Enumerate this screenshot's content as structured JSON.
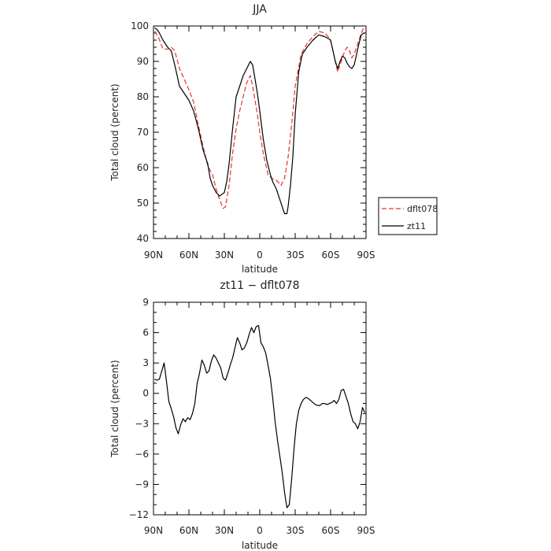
{
  "chart_data": [
    {
      "type": "line",
      "title": "JJA",
      "xlabel": "latitude",
      "ylabel": "Total cloud (percent)",
      "xlim": [
        90,
        -90
      ],
      "ylim": [
        40,
        100
      ],
      "x_ticks": [
        90,
        60,
        30,
        0,
        -30,
        -60,
        -90
      ],
      "x_tick_labels": [
        "90N",
        "60N",
        "30N",
        "0",
        "30S",
        "60S",
        "90S"
      ],
      "y_ticks": [
        40,
        50,
        60,
        70,
        80,
        90,
        100
      ],
      "y_tick_labels": [
        "40",
        "50",
        "60",
        "70",
        "80",
        "90",
        "100"
      ],
      "grid": false,
      "legend": {
        "placement": "right-outside",
        "entries": [
          "dflt078",
          "zt11"
        ]
      },
      "series": [
        {
          "name": "dflt078",
          "color": "#e8302a",
          "dash": "dashed",
          "x": [
            89,
            86,
            82,
            78,
            75,
            72,
            68,
            64,
            60,
            56,
            52,
            48,
            44,
            40,
            37,
            34,
            31,
            29,
            26,
            23,
            20,
            17,
            14,
            11,
            8,
            6,
            4,
            2,
            0,
            -3,
            -7,
            -10,
            -14,
            -18,
            -21,
            -24,
            -27,
            -30,
            -35,
            -40,
            -45,
            -50,
            -55,
            -58,
            -60,
            -64,
            -66,
            -68,
            -70,
            -72,
            -74,
            -76,
            -78,
            -80,
            -82,
            -84,
            -86,
            -88,
            -89
          ],
          "y": [
            98.5,
            97,
            93.5,
            93.5,
            94,
            93,
            88,
            85,
            82,
            78.5,
            72,
            66,
            60.5,
            58,
            54,
            51,
            48.5,
            49,
            55,
            64,
            71,
            76,
            80,
            84,
            86,
            83,
            79,
            75,
            70,
            64,
            58,
            57,
            56.5,
            55,
            57,
            63,
            72,
            83,
            92,
            95,
            97,
            98.5,
            98,
            97,
            96,
            90,
            87,
            89,
            91,
            93,
            94,
            93,
            91,
            92,
            94,
            96,
            98,
            99.5,
            100
          ]
        },
        {
          "name": "zt11",
          "color": "#000000",
          "dash": "solid",
          "x": [
            89,
            87,
            85,
            82,
            78,
            75,
            72,
            68,
            64,
            60,
            56,
            52,
            48,
            44,
            42,
            40,
            37,
            34,
            32,
            30,
            28,
            26,
            23,
            20,
            17,
            14,
            11,
            8,
            6,
            4,
            2,
            0,
            -3,
            -6,
            -9,
            -11,
            -14,
            -17,
            -19,
            -21,
            -23,
            -24,
            -26,
            -28,
            -30,
            -33,
            -36,
            -40,
            -45,
            -50,
            -55,
            -58,
            -60,
            -62,
            -64,
            -66,
            -68,
            -70,
            -72,
            -74,
            -76,
            -78,
            -80,
            -82,
            -84,
            -86,
            -88,
            -89
          ],
          "y": [
            99.5,
            99,
            98,
            96,
            94,
            93,
            89,
            83,
            81,
            79,
            76,
            71,
            65,
            61,
            57,
            55,
            53,
            52,
            52.5,
            53,
            56,
            61,
            71,
            80,
            83,
            86,
            88,
            90,
            89,
            85,
            81,
            76,
            68,
            62,
            58,
            56,
            54,
            51,
            49,
            47,
            47,
            49,
            55,
            63,
            75,
            87,
            92,
            94,
            96,
            97.5,
            97,
            96.5,
            96,
            93,
            90,
            88,
            90,
            91.5,
            91,
            89.5,
            88.5,
            88,
            89,
            92,
            95,
            97.5,
            98,
            98
          ]
        }
      ]
    },
    {
      "type": "line",
      "title": "zt11 − dflt078",
      "xlabel": "latitude",
      "ylabel": "Total cloud (percent)",
      "xlim": [
        90,
        -90
      ],
      "ylim": [
        -12,
        9
      ],
      "x_ticks": [
        90,
        60,
        30,
        0,
        -30,
        -60,
        -90
      ],
      "x_tick_labels": [
        "90N",
        "60N",
        "30N",
        "0",
        "30S",
        "60S",
        "90S"
      ],
      "y_ticks": [
        -12,
        -9,
        -6,
        -3,
        0,
        3,
        6,
        9
      ],
      "y_tick_labels": [
        "−12",
        "−9",
        "−6",
        "−3",
        "0",
        "3",
        "6",
        "9"
      ],
      "grid": false,
      "series": [
        {
          "color": "#000000",
          "dash": "solid",
          "x": [
            89,
            87,
            85,
            83,
            81,
            79,
            77,
            75,
            73,
            71,
            69,
            67,
            65,
            63,
            61,
            59,
            57,
            55,
            53,
            51,
            49,
            47,
            45,
            43,
            41,
            39,
            37,
            35,
            33,
            31,
            29,
            27,
            25,
            23,
            21,
            19,
            17,
            15,
            13,
            11,
            9,
            7,
            5,
            3,
            1,
            -1,
            -3,
            -5,
            -7,
            -9,
            -11,
            -13,
            -15,
            -17,
            -19,
            -21,
            -23,
            -25,
            -27,
            -29,
            -31,
            -33,
            -35,
            -37,
            -39,
            -41,
            -43,
            -45,
            -47,
            -49,
            -51,
            -53,
            -55,
            -57,
            -59,
            -61,
            -63,
            -65,
            -67,
            -69,
            -71,
            -73,
            -75,
            -77,
            -79,
            -81,
            -83,
            -85,
            -87,
            -89
          ],
          "y": [
            1.4,
            1.3,
            1.4,
            2.2,
            3.0,
            1.2,
            -0.8,
            -1.5,
            -2.3,
            -3.4,
            -4.0,
            -3.1,
            -2.5,
            -2.8,
            -2.4,
            -2.6,
            -2.0,
            -1.0,
            1.0,
            2.0,
            3.3,
            2.8,
            2.0,
            2.2,
            3.2,
            3.8,
            3.5,
            3.0,
            2.5,
            1.5,
            1.3,
            2.0,
            2.8,
            3.5,
            4.5,
            5.5,
            5.0,
            4.3,
            4.5,
            5.0,
            5.8,
            6.5,
            6.0,
            6.6,
            6.7,
            5.0,
            4.6,
            4.0,
            2.8,
            1.5,
            -0.5,
            -2.8,
            -4.6,
            -6.2,
            -7.8,
            -9.8,
            -11.3,
            -11.0,
            -8.5,
            -5.5,
            -3.0,
            -1.7,
            -1.0,
            -0.6,
            -0.4,
            -0.5,
            -0.7,
            -0.9,
            -1.1,
            -1.2,
            -1.2,
            -1.0,
            -1.0,
            -1.1,
            -1.0,
            -0.9,
            -0.7,
            -1.0,
            -0.6,
            0.3,
            0.4,
            -0.3,
            -1.0,
            -2.0,
            -2.8,
            -3.0,
            -3.5,
            -2.8,
            -1.4,
            -1.9
          ]
        }
      ]
    }
  ]
}
